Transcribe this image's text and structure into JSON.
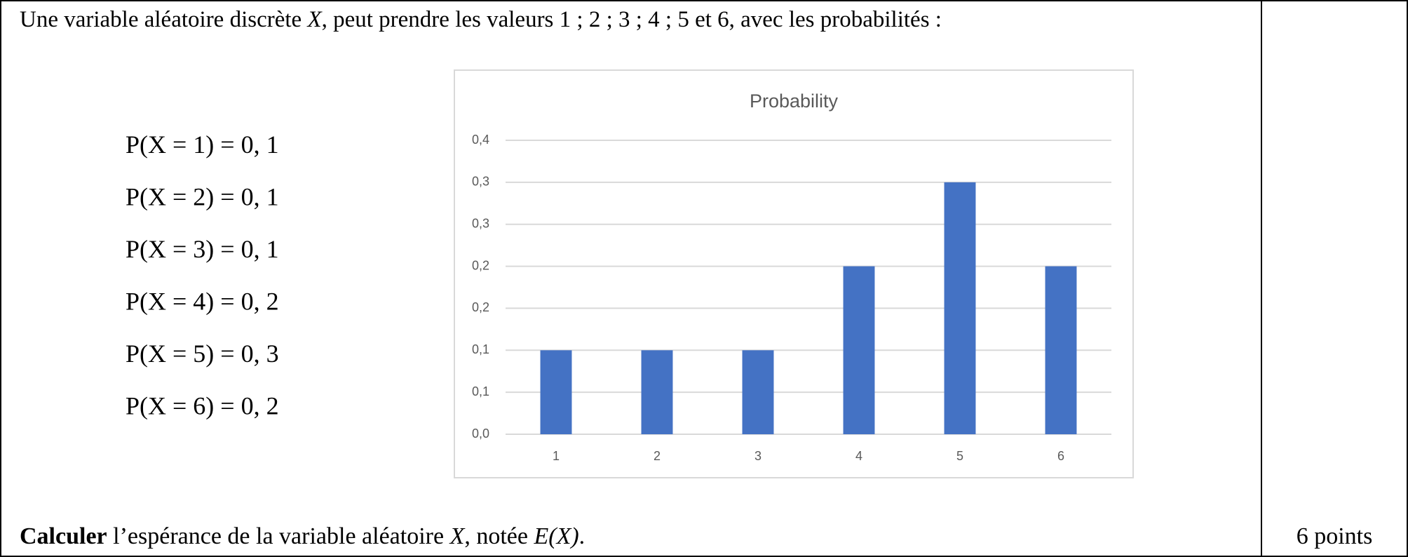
{
  "intro": [
    {
      "text": "Une variable aléatoire discrète "
    },
    {
      "text": "X",
      "italic": true
    },
    {
      "text": ", peut prendre les valeurs 1 ; 2 ; 3 ; 4 ; 5 et 6, avec les probabilités :"
    }
  ],
  "probabilities": [
    "P(X = 1) = 0, 1",
    "P(X = 2) = 0, 1",
    "P(X = 3) = 0, 1",
    "P(X = 4) = 0, 2",
    "P(X = 5) = 0, 3",
    "P(X = 6) = 0, 2"
  ],
  "chart_data": {
    "type": "bar",
    "title": "Probability",
    "categories": [
      "1",
      "2",
      "3",
      "4",
      "5",
      "6"
    ],
    "values": [
      0.1,
      0.1,
      0.1,
      0.2,
      0.3,
      0.2
    ],
    "color": "#4472c4",
    "ylim": [
      0,
      0.35
    ],
    "yticks": [
      {
        "value": 0,
        "label": "0,0"
      },
      {
        "value": 0.05,
        "label": "0,1"
      },
      {
        "value": 0.1,
        "label": "0,1"
      },
      {
        "value": 0.15,
        "label": "0,2"
      },
      {
        "value": 0.2,
        "label": "0,2"
      },
      {
        "value": 0.25,
        "label": "0,3"
      },
      {
        "value": 0.3,
        "label": "0,3"
      },
      {
        "value": 0.35,
        "label": "0,4"
      }
    ],
    "grid": true
  },
  "question": [
    {
      "text": "Calculer",
      "bold": true
    },
    {
      "text": " l’espérance de la variable aléatoire "
    },
    {
      "text": "X",
      "italic": true
    },
    {
      "text": ", notée "
    },
    {
      "text": "E(X)",
      "italic": true
    },
    {
      "text": "."
    }
  ],
  "points": "6 points"
}
